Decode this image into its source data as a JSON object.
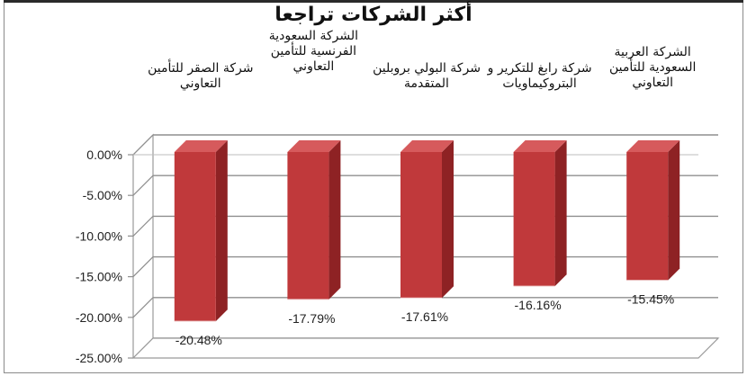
{
  "chart_data": {
    "type": "bar",
    "title": "أكثر الشركات تراجعا",
    "categories": [
      "شركة الصقر للتأمين التعاوني",
      "الشركة السعودية الفرنسية للتأمين التعاوني",
      "شركة البولي بروبلين المتقدمة",
      "شركة رابغ للتكرير و البتروكيماويات",
      "الشركة العربية السعودية للتأمين التعاوني"
    ],
    "values": [
      -20.48,
      -17.79,
      -17.61,
      -16.16,
      -15.45
    ],
    "data_labels": [
      "-20.48%",
      "-17.79%",
      "-17.61%",
      "-16.16%",
      "-15.45%"
    ],
    "y_ticks": [
      "0.00%",
      "-5.00%",
      "-10.00%",
      "-15.00%",
      "-20.00%",
      "-25.00%"
    ],
    "ylim": [
      -25,
      0
    ],
    "grid": true,
    "bar_color": "#c0393b",
    "bar_side_color": "#8e2224",
    "bar_top_color": "#d65a5c"
  }
}
